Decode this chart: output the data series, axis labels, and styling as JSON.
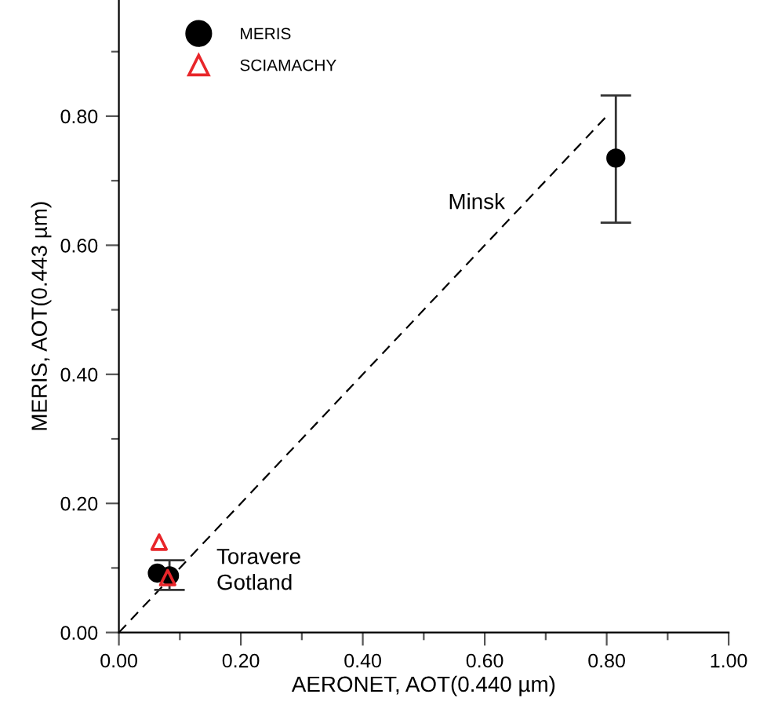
{
  "chart_data": {
    "type": "scatter",
    "xlabel": "AERONET, AOT(0.440 µm)",
    "ylabel": "MERIS, AOT(0.443 µm)",
    "xlim": [
      0,
      1.0
    ],
    "ylim": [
      0,
      0.98
    ],
    "xticks": [
      {
        "value": 0,
        "label": "0.00"
      },
      {
        "value": 0.1,
        "label": null
      },
      {
        "value": 0.2,
        "label": "0.20"
      },
      {
        "value": 0.3,
        "label": null
      },
      {
        "value": 0.4,
        "label": "0.40"
      },
      {
        "value": 0.5,
        "label": null
      },
      {
        "value": 0.6,
        "label": "0.60"
      },
      {
        "value": 0.7,
        "label": null
      },
      {
        "value": 0.8,
        "label": "0.80"
      },
      {
        "value": 0.9,
        "label": null
      },
      {
        "value": 1.0,
        "label": "1.00"
      }
    ],
    "yticks": [
      {
        "value": 0,
        "label": "0.00"
      },
      {
        "value": 0.1,
        "label": null
      },
      {
        "value": 0.2,
        "label": "0.20"
      },
      {
        "value": 0.3,
        "label": null
      },
      {
        "value": 0.4,
        "label": "0.40"
      },
      {
        "value": 0.5,
        "label": null
      },
      {
        "value": 0.6,
        "label": "0.60"
      },
      {
        "value": 0.7,
        "label": null
      },
      {
        "value": 0.8,
        "label": "0.80"
      },
      {
        "value": 0.9,
        "label": null
      }
    ],
    "grid": false,
    "legend": "top left",
    "series": [
      {
        "type": "line",
        "color": "#000000",
        "line_style": "dashed",
        "marker": "none",
        "x": [
          0,
          0.8
        ],
        "values": [
          0,
          0.8
        ]
      },
      {
        "name": "MERIS",
        "color": "#000000",
        "marker": "circle",
        "x": [
          0.063,
          0.083,
          0.815
        ],
        "values": [
          0.092,
          0.088,
          0.735
        ],
        "errors": [
          null,
          [
            0.066,
            0.112
          ],
          [
            0.635,
            0.832
          ]
        ]
      },
      {
        "name": "SCIAMACHY",
        "color": "#e8262a",
        "marker": "triangle",
        "x": [
          0.066,
          0.08
        ],
        "values": [
          0.14,
          0.085
        ]
      }
    ],
    "annotations": [
      "Minsk",
      "Toravere",
      "Gotland"
    ]
  }
}
